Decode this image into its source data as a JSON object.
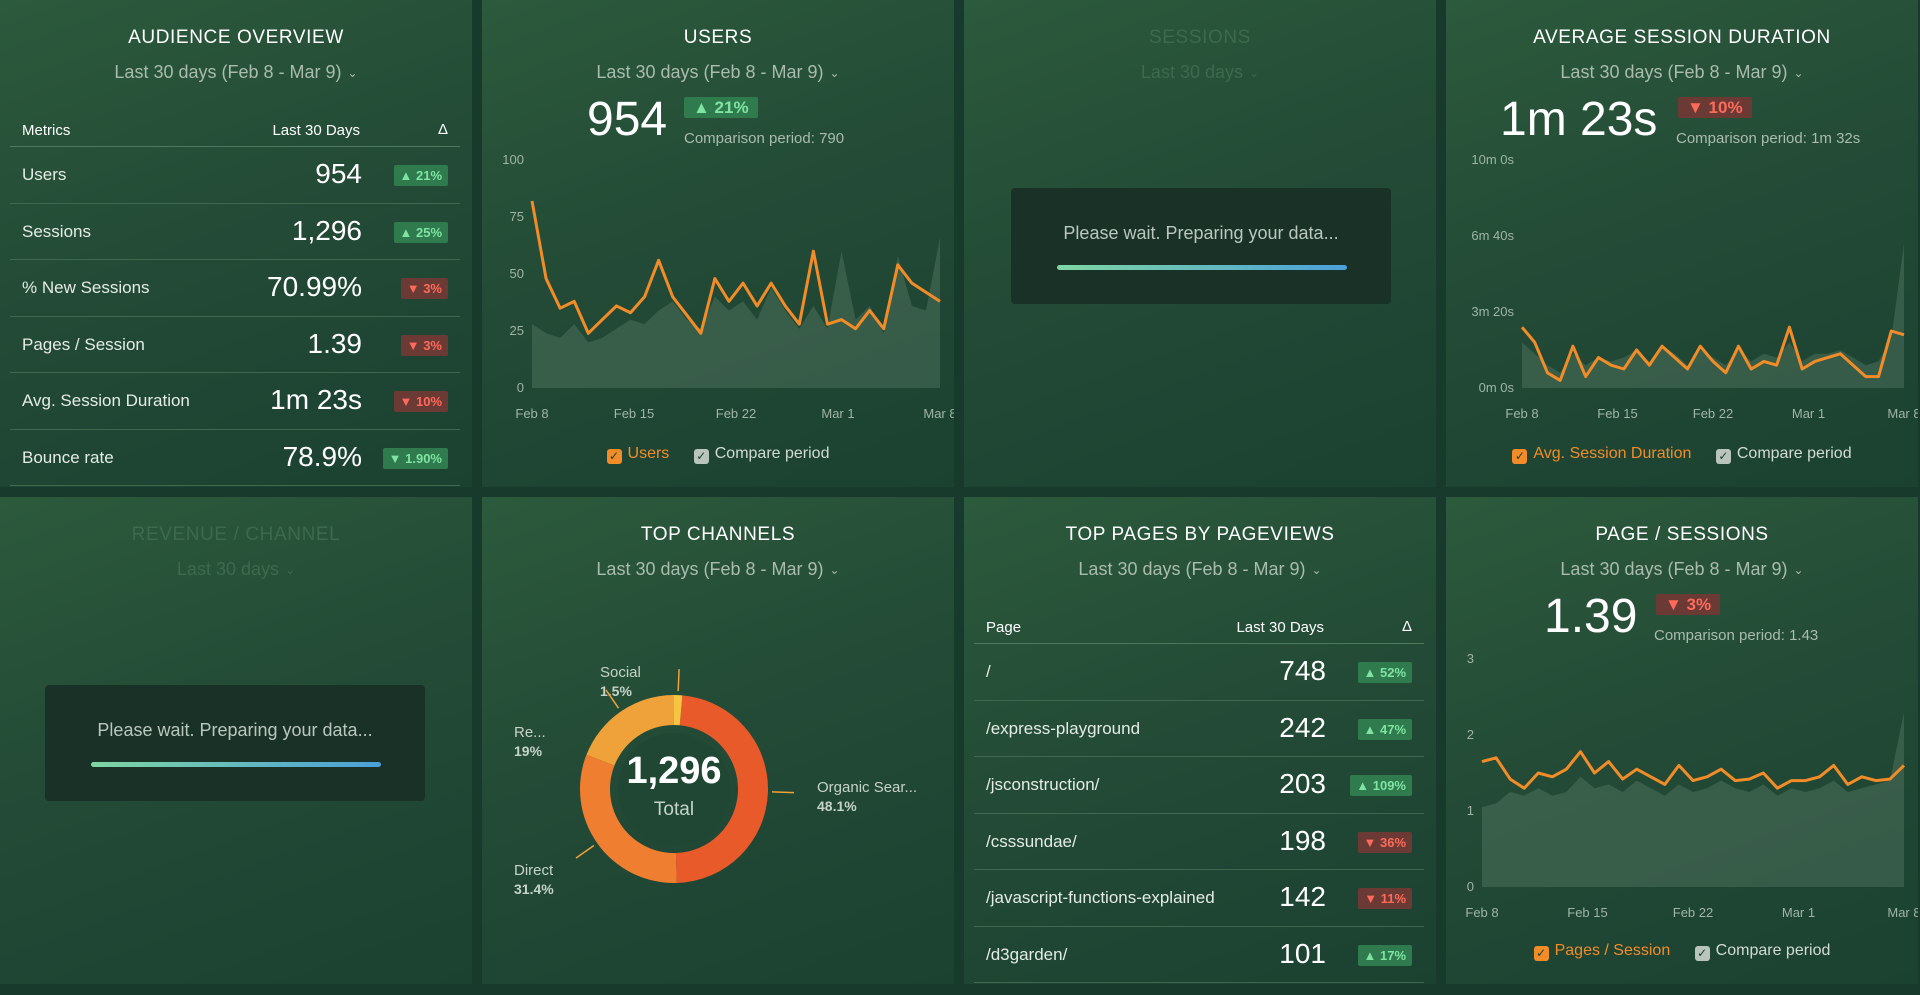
{
  "audience": {
    "title": "AUDIENCE OVERVIEW",
    "range": "Last 30 days (Feb 8 - Mar 9)",
    "headers": {
      "metric": "Metrics",
      "period": "Last 30 Days",
      "delta": "Δ"
    },
    "rows": [
      {
        "name": "Users",
        "value": "954",
        "delta": "▲ 21%",
        "dir": "up"
      },
      {
        "name": "Sessions",
        "value": "1,296",
        "delta": "▲ 25%",
        "dir": "up"
      },
      {
        "name": "% New Sessions",
        "value": "70.99%",
        "delta": "▼ 3%",
        "dir": "down"
      },
      {
        "name": "Pages / Session",
        "value": "1.39",
        "delta": "▼ 3%",
        "dir": "down"
      },
      {
        "name": "Avg. Session Duration",
        "value": "1m 23s",
        "delta": "▼ 10%",
        "dir": "down"
      },
      {
        "name": "Bounce rate",
        "value": "78.9%",
        "delta": "▼ 1.90%",
        "dir": "up"
      }
    ]
  },
  "users": {
    "title": "USERS",
    "range": "Last 30 days (Feb 8 - Mar 9)",
    "value": "954",
    "delta": "▲ 21%",
    "comparison": "Comparison period: 790",
    "legend": {
      "primary": "Users",
      "compare": "Compare period"
    }
  },
  "sessions": {
    "title": "SESSIONS",
    "range": "Last 30 days",
    "wait": "Please wait. Preparing your data..."
  },
  "avg_duration": {
    "title": "AVERAGE SESSION DURATION",
    "range": "Last 30 days (Feb 8 - Mar 9)",
    "value": "1m 23s",
    "delta": "▼ 10%",
    "comparison": "Comparison period: 1m 32s",
    "legend": {
      "primary": "Avg. Session Duration",
      "compare": "Compare period"
    }
  },
  "revenue": {
    "title": "REVENUE / CHANNEL",
    "range": "Last 30 days",
    "wait": "Please wait. Preparing your data..."
  },
  "channels": {
    "title": "TOP CHANNELS",
    "range": "Last 30 days (Feb 8 - Mar 9)",
    "total": "1,296",
    "total_label": "Total",
    "labels": [
      {
        "name": "Social",
        "pct": "1.5%"
      },
      {
        "name": "Re...",
        "pct": "19%"
      },
      {
        "name": "Organic Sear...",
        "pct": "48.1%"
      },
      {
        "name": "Direct",
        "pct": "31.4%"
      }
    ]
  },
  "pages": {
    "title": "TOP PAGES BY PAGEVIEWS",
    "range": "Last 30 days (Feb 8 - Mar 9)",
    "headers": {
      "page": "Page",
      "period": "Last 30 Days",
      "delta": "Δ"
    },
    "rows": [
      {
        "page": "/",
        "value": "748",
        "delta": "▲ 52%",
        "dir": "up"
      },
      {
        "page": "/express-playground",
        "value": "242",
        "delta": "▲ 47%",
        "dir": "up"
      },
      {
        "page": "/jsconstruction/",
        "value": "203",
        "delta": "▲ 109%",
        "dir": "up"
      },
      {
        "page": "/csssundae/",
        "value": "198",
        "delta": "▼ 36%",
        "dir": "down"
      },
      {
        "page": "/javascript-functions-explained",
        "value": "142",
        "delta": "▼ 11%",
        "dir": "down"
      },
      {
        "page": "/d3garden/",
        "value": "101",
        "delta": "▲ 17%",
        "dir": "up"
      }
    ]
  },
  "page_sessions": {
    "title": "PAGE / SESSIONS",
    "range": "Last 30 days (Feb 8 - Mar 9)",
    "value": "1.39",
    "delta": "▼ 3%",
    "comparison": "Comparison period: 1.43",
    "legend": {
      "primary": "Pages / Session",
      "compare": "Compare period"
    }
  },
  "colors": {
    "accent": "#f28c28",
    "up": "#7fe3a3",
    "down": "#ff6a5a",
    "panel": "#234b36"
  },
  "chart_data": [
    {
      "type": "line",
      "title": "USERS",
      "x_ticks": [
        "Feb 8",
        "Feb 15",
        "Feb 22",
        "Mar 1",
        "Mar 8"
      ],
      "y_ticks": [
        "0",
        "25",
        "50",
        "75",
        "100"
      ],
      "ylim": [
        0,
        100
      ],
      "series": [
        {
          "name": "Users",
          "values": [
            82,
            48,
            35,
            38,
            24,
            30,
            36,
            33,
            40,
            56,
            40,
            32,
            24,
            48,
            38,
            46,
            36,
            46,
            36,
            28,
            60,
            28,
            30,
            26,
            34,
            26,
            54,
            46,
            42,
            38
          ]
        },
        {
          "name": "Compare period",
          "values": [
            28,
            24,
            22,
            28,
            20,
            22,
            26,
            30,
            28,
            34,
            38,
            30,
            26,
            40,
            34,
            38,
            30,
            44,
            34,
            26,
            36,
            26,
            60,
            30,
            36,
            24,
            58,
            36,
            34,
            66
          ]
        }
      ]
    },
    {
      "type": "line",
      "title": "AVERAGE SESSION DURATION",
      "x_ticks": [
        "Feb 8",
        "Feb 15",
        "Feb 22",
        "Mar 1",
        "Mar 8"
      ],
      "y_ticks": [
        "0m 0s",
        "3m 20s",
        "6m 40s",
        "10m 0s"
      ],
      "ylim": [
        0,
        600
      ],
      "series": [
        {
          "name": "Avg. Session Duration",
          "values": [
            160,
            120,
            40,
            20,
            110,
            30,
            80,
            60,
            50,
            100,
            60,
            110,
            80,
            50,
            110,
            70,
            40,
            110,
            50,
            70,
            60,
            160,
            50,
            70,
            80,
            90,
            60,
            30,
            30,
            150,
            140
          ]
        },
        {
          "name": "Compare period",
          "values": [
            120,
            90,
            60,
            40,
            90,
            60,
            80,
            70,
            80,
            100,
            70,
            110,
            90,
            60,
            100,
            80,
            60,
            100,
            70,
            90,
            80,
            120,
            70,
            90,
            90,
            100,
            80,
            60,
            70,
            130,
            380
          ]
        }
      ]
    },
    {
      "type": "pie",
      "title": "TOP CHANNELS",
      "categories": [
        "Organic Search",
        "Direct",
        "Referral",
        "Social"
      ],
      "values": [
        48.1,
        31.4,
        19,
        1.5
      ]
    },
    {
      "type": "line",
      "title": "PAGE / SESSIONS",
      "x_ticks": [
        "Feb 8",
        "Feb 15",
        "Feb 22",
        "Mar 1",
        "Mar 8"
      ],
      "y_ticks": [
        "0",
        "1",
        "2",
        "3"
      ],
      "ylim": [
        0,
        3
      ],
      "series": [
        {
          "name": "Pages / Session",
          "values": [
            1.65,
            1.7,
            1.42,
            1.3,
            1.5,
            1.45,
            1.55,
            1.78,
            1.5,
            1.65,
            1.42,
            1.55,
            1.45,
            1.35,
            1.6,
            1.4,
            1.45,
            1.55,
            1.4,
            1.42,
            1.5,
            1.3,
            1.4,
            1.4,
            1.45,
            1.6,
            1.35,
            1.45,
            1.4,
            1.42,
            1.6
          ]
        },
        {
          "name": "Compare period",
          "values": [
            1.05,
            1.1,
            1.25,
            1.2,
            1.3,
            1.2,
            1.25,
            1.45,
            1.3,
            1.35,
            1.25,
            1.4,
            1.3,
            1.2,
            1.35,
            1.25,
            1.3,
            1.4,
            1.3,
            1.25,
            1.35,
            1.2,
            1.3,
            1.25,
            1.3,
            1.4,
            1.25,
            1.3,
            1.35,
            1.4,
            2.3
          ]
        }
      ]
    }
  ]
}
